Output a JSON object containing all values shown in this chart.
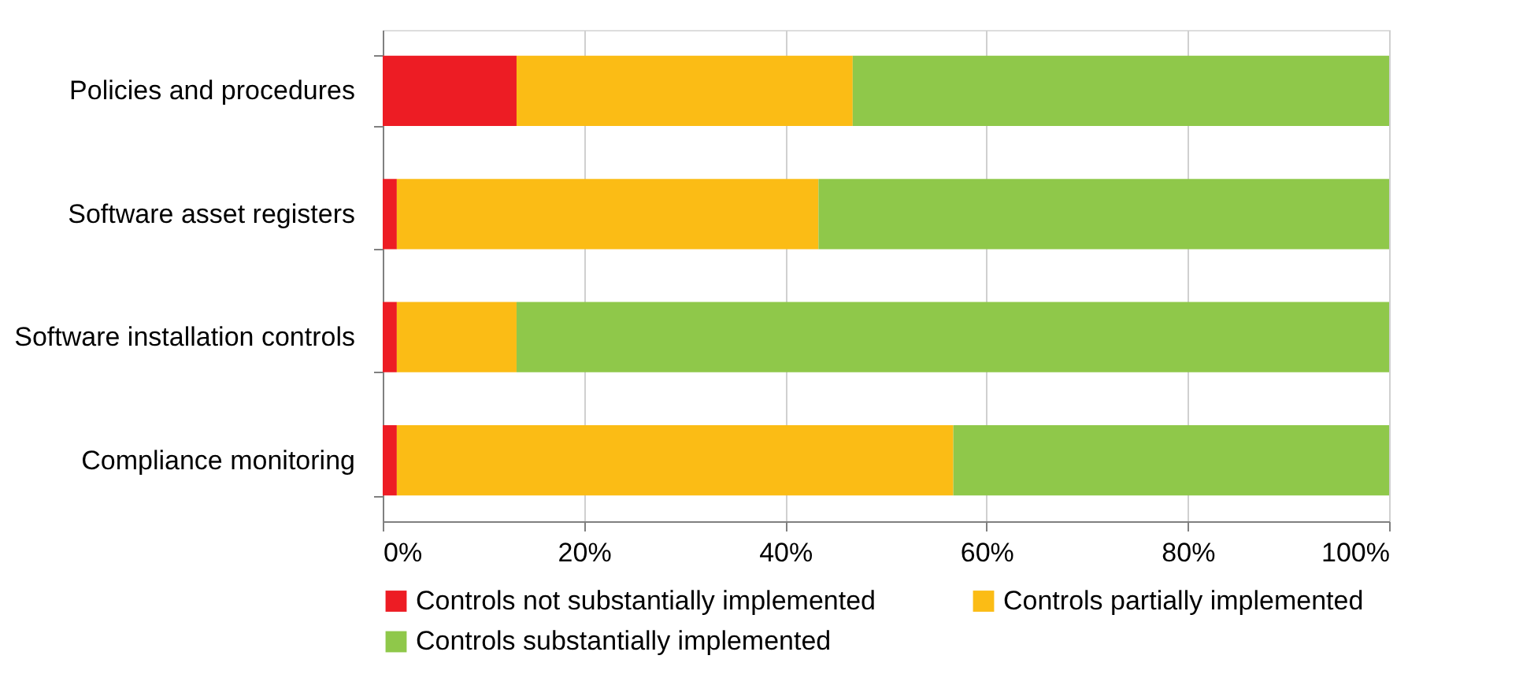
{
  "chart_data": {
    "type": "bar",
    "orientation": "horizontal",
    "stacked": true,
    "categories": [
      "Policies and procedures",
      "Software asset registers",
      "Software installation controls",
      "Compliance monitoring"
    ],
    "series": [
      {
        "name": "Controls not substantially implemented",
        "color": "#ed1c24",
        "values": [
          13.3,
          1.4,
          1.4,
          1.4
        ]
      },
      {
        "name": "Controls partially implemented",
        "color": "#fbbc15",
        "values": [
          33.4,
          41.9,
          11.9,
          55.3
        ]
      },
      {
        "name": "Controls substantially implemented",
        "color": "#8fc84a",
        "values": [
          53.3,
          56.7,
          86.7,
          43.3
        ]
      }
    ],
    "xlim": [
      0,
      100
    ],
    "xticks": [
      {
        "value": 0,
        "label": "0%"
      },
      {
        "value": 20,
        "label": "20%"
      },
      {
        "value": 40,
        "label": "40%"
      },
      {
        "value": 60,
        "label": "60%"
      },
      {
        "value": 80,
        "label": "80%"
      },
      {
        "value": 100,
        "label": "100%"
      }
    ],
    "grid": "x",
    "legend": "bottom"
  }
}
